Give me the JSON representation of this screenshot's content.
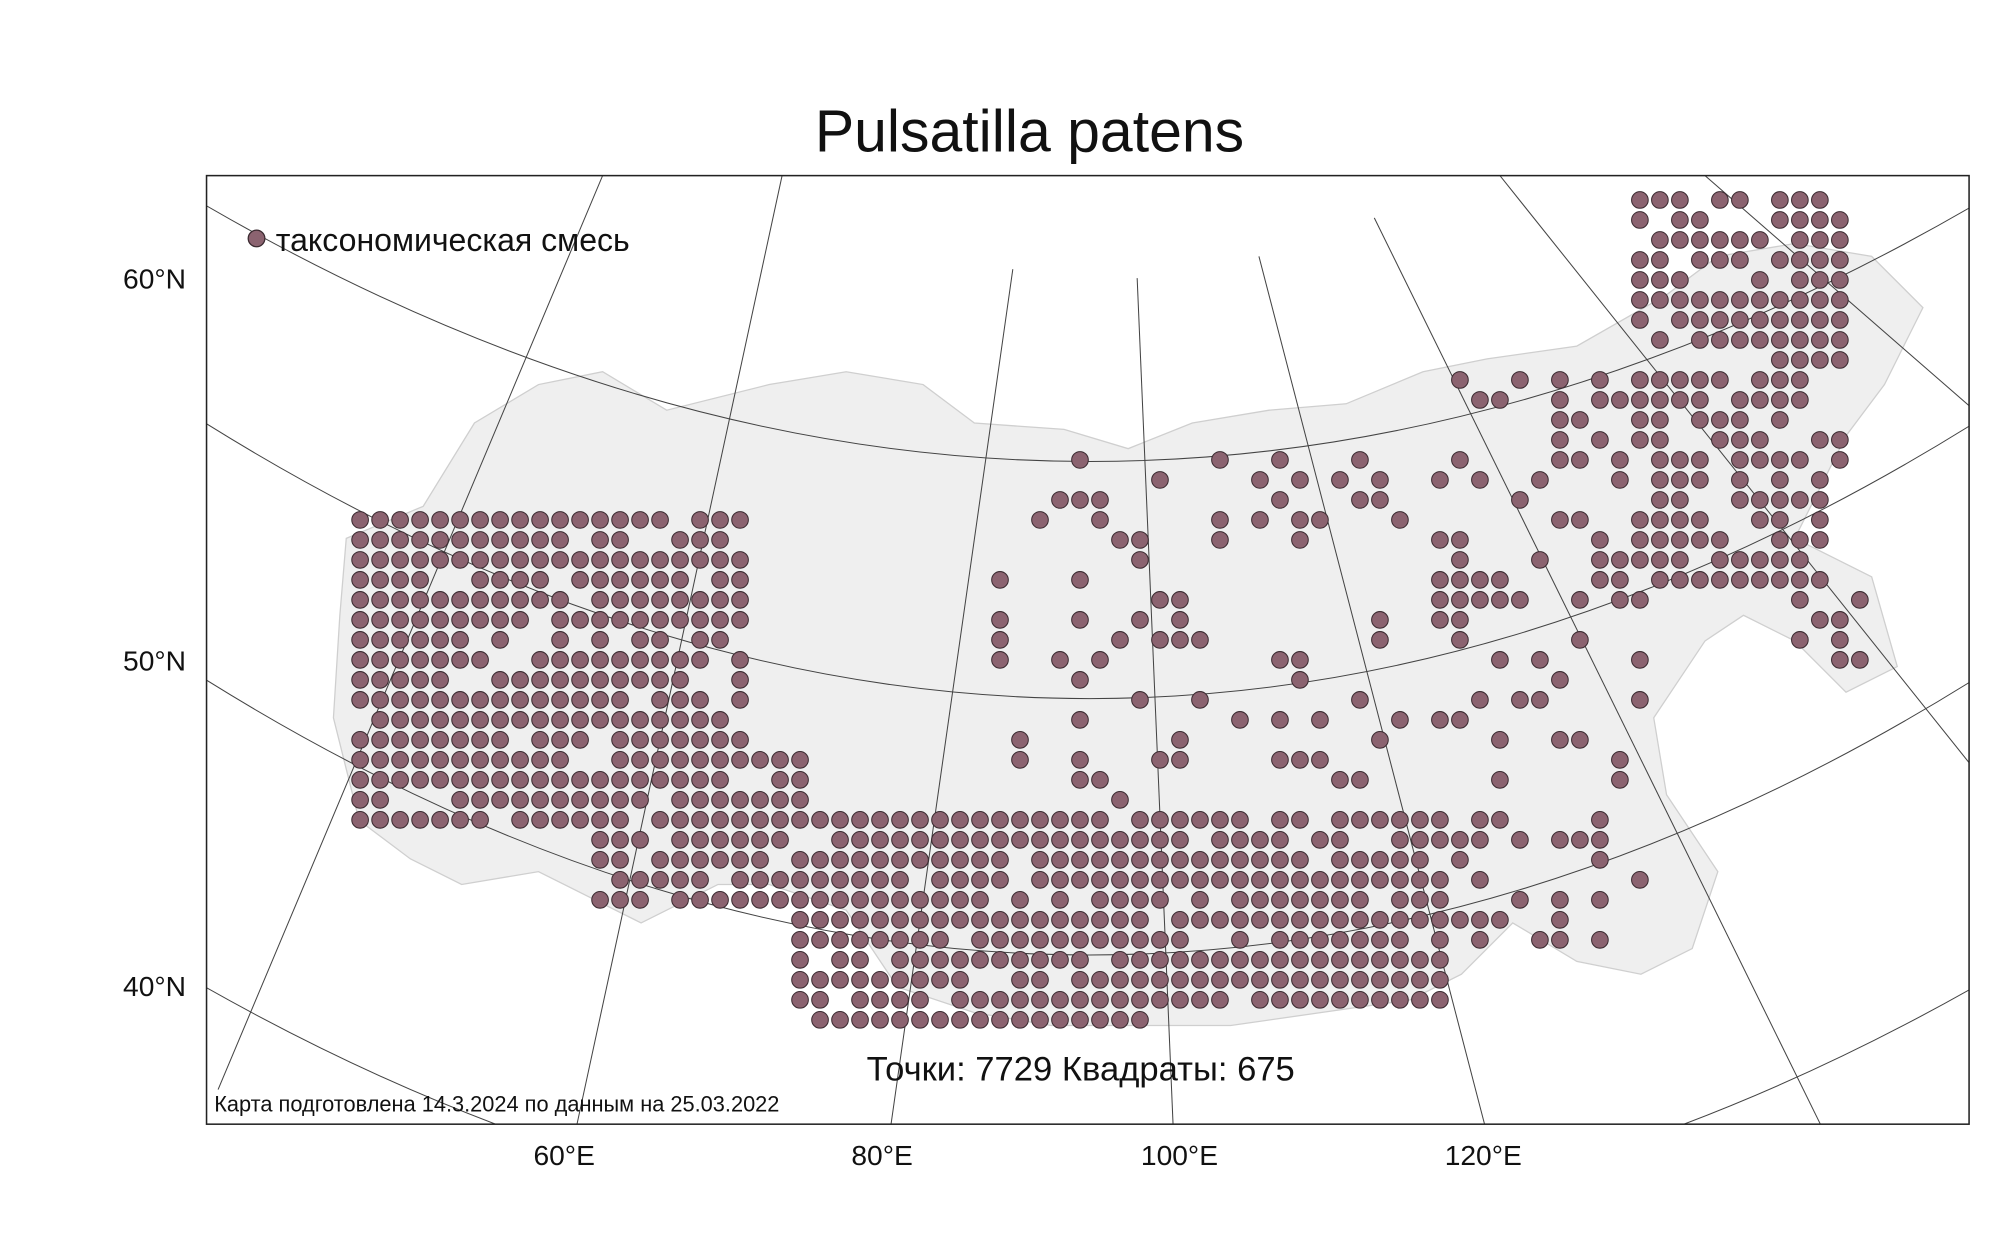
{
  "title": "Pulsatilla patens",
  "legend": {
    "label": "таксономическая смесь"
  },
  "axes": {
    "y_labels": [
      "60°N",
      "50°N",
      "40°N"
    ],
    "x_labels": [
      "60°E",
      "80°E",
      "100°E",
      "120°E"
    ]
  },
  "stats": "Точки: 7729 Квадраты: 675",
  "footer": "Карта подготовлена 14.3.2024 по данным на 25.03.2022"
}
